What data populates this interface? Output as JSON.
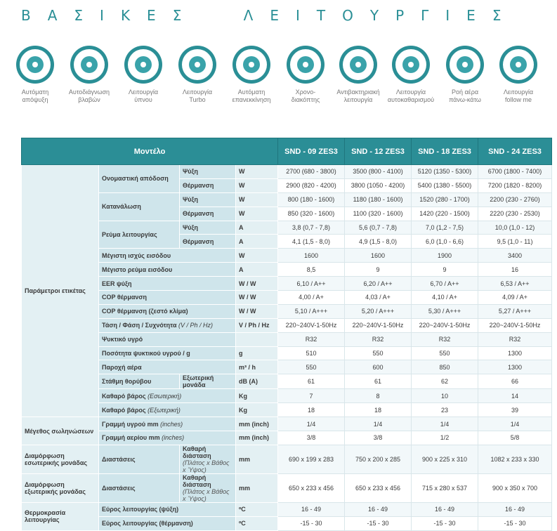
{
  "title": "ΒΑΣΙΚΕΣ ΛΕΙΤΟΥΡΓΙΕΣ",
  "features": [
    [
      "Αυτόματη",
      "απόψυξη"
    ],
    [
      "Αυτοδιάγνωση",
      "βλαβών"
    ],
    [
      "Λειτουργία",
      "ύπνου"
    ],
    [
      "Λειτουργία",
      "Turbo"
    ],
    [
      "Αυτόματη",
      "επανεκκίνηση"
    ],
    [
      "Χρονο-",
      "διακόπτης"
    ],
    [
      "Αντιβακτηριακή",
      "λειτουργία"
    ],
    [
      "Λειτουργία",
      "αυτοκαθαρισμού"
    ],
    [
      "Ροή αέρα",
      "πάνω-κάτω"
    ],
    [
      "Λειτουργία",
      "follow me"
    ]
  ],
  "table": {
    "model": "Μοντέλο",
    "models": [
      "SND - 09 ZES3",
      "SND - 12 ZES3",
      "SND - 18 ZES3",
      "SND - 24 ZES3"
    ],
    "groups": [
      {
        "label": "Παράμετροι ετικέτας",
        "items": [
          {
            "label": "Ονομαστική απόδοση",
            "subs": [
              {
                "sub": "Ψύξη",
                "unit": "W",
                "values": [
                  "2700 (680 - 3800)",
                  "3500 (800 - 4100)",
                  "5120 (1350 - 5300)",
                  "6700 (1800 - 7400)"
                ]
              },
              {
                "sub": "Θέρμανση",
                "unit": "W",
                "values": [
                  "2900 (820 - 4200)",
                  "3800 (1050 - 4200)",
                  "5400 (1380 - 5500)",
                  "7200 (1820 - 8200)"
                ]
              }
            ]
          },
          {
            "label": "Κατανάλωση",
            "subs": [
              {
                "sub": "Ψύξη",
                "unit": "W",
                "values": [
                  "800 (180 - 1600)",
                  "1180 (180 - 1600)",
                  "1520 (280 - 1700)",
                  "2200 (230 - 2760)"
                ]
              },
              {
                "sub": "Θέρμανση",
                "unit": "W",
                "values": [
                  "850 (320 - 1600)",
                  "1100 (320 - 1600)",
                  "1420 (220 - 1500)",
                  "2220 (230 - 2530)"
                ]
              }
            ]
          },
          {
            "label": "Ρεύμα λειτουργίας",
            "subs": [
              {
                "sub": "Ψύξη",
                "unit": "A",
                "values": [
                  "3,8 (0,7 - 7,8)",
                  "5,6 (0,7 - 7,8)",
                  "7,0 (1,2 - 7,5)",
                  "10,0 (1,0 - 12)"
                ]
              },
              {
                "sub": "Θέρμανση",
                "unit": "A",
                "values": [
                  "4,1 (1,5 - 8,0)",
                  "4,9 (1,5 - 8,0)",
                  "6,0 (1,0 - 6,6)",
                  "9,5 (1,0 - 11)"
                ]
              }
            ]
          },
          {
            "label": "Μέγιστη ισχύς εισόδου",
            "unit": "W",
            "values": [
              "1600",
              "1600",
              "1900",
              "3400"
            ]
          },
          {
            "label": "Μέγιστο ρεύμα εισόδου",
            "unit": "A",
            "values": [
              "8,5",
              "9",
              "9",
              "16"
            ]
          },
          {
            "label": "EER ψύξη",
            "unit": "W / W",
            "values": [
              "6,10 / A++",
              "6,20 / A++",
              "6,70 / A++",
              "6,53 / A++"
            ]
          },
          {
            "label": "COP θέρμανση",
            "unit": "W / W",
            "values": [
              "4,00 / A+",
              "4,03 / A+",
              "4,10 / A+",
              "4,09 / A+"
            ]
          },
          {
            "label": "COP θέρμανση (ζεστό κλίμα)",
            "unit": "W / W",
            "values": [
              "5,10 / A+++",
              "5,20 / A+++",
              "5,30 / A+++",
              "5,27 / A+++"
            ]
          },
          {
            "label": "Τάση / Φάση / Συχνότητα",
            "note": "(V / Ph / Hz)",
            "unit": "V / Ph / Hz",
            "values": [
              "220~240V-1-50Hz",
              "220~240V-1-50Hz",
              "220~240V-1-50Hz",
              "220~240V-1-50Hz"
            ]
          },
          {
            "label": "Ψυκτικό υγρό",
            "values": [
              "R32",
              "R32",
              "R32",
              "R32"
            ]
          },
          {
            "label": "Ποσότητα ψυκτικού υγρού / g",
            "unit": "g",
            "values": [
              "510",
              "550",
              "550",
              "1300"
            ]
          },
          {
            "label": "Παροχή αέρα",
            "unit": "m³ / h",
            "values": [
              "550",
              "600",
              "850",
              "1300"
            ]
          },
          {
            "label": "Στάθμη θορύβου",
            "sub": "Εξωτερική μονάδα",
            "unit": "dB (A)",
            "values": [
              "61",
              "61",
              "62",
              "66"
            ]
          },
          {
            "label": "Καθαρό βάρος",
            "note": "(Εσωτερική)",
            "unit": "Kg",
            "values": [
              "7",
              "8",
              "10",
              "14"
            ]
          },
          {
            "label": "Καθαρό βάρος",
            "note": "(Εξωτερική)",
            "unit": "Kg",
            "values": [
              "18",
              "18",
              "23",
              "39"
            ]
          }
        ]
      },
      {
        "label": "Μέγεθος σωληνώσεων",
        "items": [
          {
            "label": "Γραμμή υγρού mm",
            "note": "(inches)",
            "unit": "mm (inch)",
            "values": [
              "1/4",
              "1/4",
              "1/4",
              "1/4"
            ]
          },
          {
            "label": "Γραμμή αερίου mm",
            "note": "(inches)",
            "unit": "mm (inch)",
            "values": [
              "3/8",
              "3/8",
              "1/2",
              "5/8"
            ]
          }
        ]
      },
      {
        "label": "Διαμόρφωση εσωτερικής μονάδας",
        "items": [
          {
            "label": "Διαστάσεις",
            "sub": "Καθαρή διάσταση",
            "subnote": "(Πλάτος x Βάθος x Ύψος)",
            "unit": "mm",
            "values": [
              "690 x 199 x 283",
              "750 x 200 x 285",
              "900 x 225 x 310",
              "1082 x 233 x 330"
            ]
          }
        ]
      },
      {
        "label": "Διαμόρφωση εξωτερικής μονάδας",
        "items": [
          {
            "label": "Διαστάσεις",
            "sub": "Καθαρή διάσταση",
            "subnote": "(Πλάτος x Βάθος x Ύψος)",
            "unit": "mm",
            "values": [
              "650 x 233 x 456",
              "650 x 233 x 456",
              "715 x 280 x 537",
              "900 x 350 x 700"
            ]
          }
        ]
      },
      {
        "label": "Θερμοκρασία λειτουργίας",
        "items": [
          {
            "label": "Εύρος λειτουργίας (ψύξη)",
            "unit": "ºC",
            "values": [
              "16 - 49",
              "16 - 49",
              "16 - 49",
              "16 - 49"
            ]
          },
          {
            "label": "Εύρος λειτουργίας (θέρμανση)",
            "unit": "ºC",
            "values": [
              "-15 - 30",
              "-15 - 30",
              "-15 - 30",
              "-15 - 30"
            ]
          }
        ]
      }
    ]
  }
}
